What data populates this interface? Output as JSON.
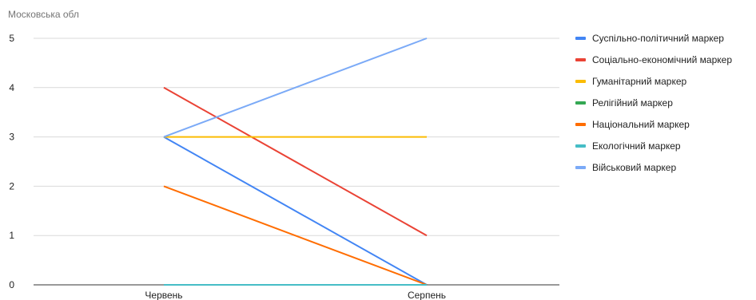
{
  "chart_data": {
    "type": "line",
    "title": "Московська обл",
    "xlabel": "",
    "ylabel": "",
    "categories": [
      "Червень",
      "Серпень"
    ],
    "ylim": [
      0,
      5
    ],
    "yticks": [
      "0",
      "1",
      "2",
      "3",
      "4",
      "5"
    ],
    "grid": true,
    "legend_position": "right",
    "series": [
      {
        "name": "Суспільно-політичний маркер",
        "color": "#4285f4",
        "values": [
          3,
          0
        ]
      },
      {
        "name": "Соціально-економічний маркер",
        "color": "#ea4335",
        "values": [
          4,
          1
        ]
      },
      {
        "name": "Гуманітарний маркер",
        "color": "#fbbc04",
        "values": [
          3,
          3
        ]
      },
      {
        "name": "Релігійний маркер",
        "color": "#34a853",
        "values": [
          0,
          0
        ]
      },
      {
        "name": "Національний маркер",
        "color": "#ff6d01",
        "values": [
          2,
          0
        ]
      },
      {
        "name": "Екологічний маркер",
        "color": "#46bdc6",
        "values": [
          0,
          0
        ]
      },
      {
        "name": "Військовий маркер",
        "color": "#7baaf7",
        "values": [
          3,
          5
        ]
      }
    ]
  }
}
